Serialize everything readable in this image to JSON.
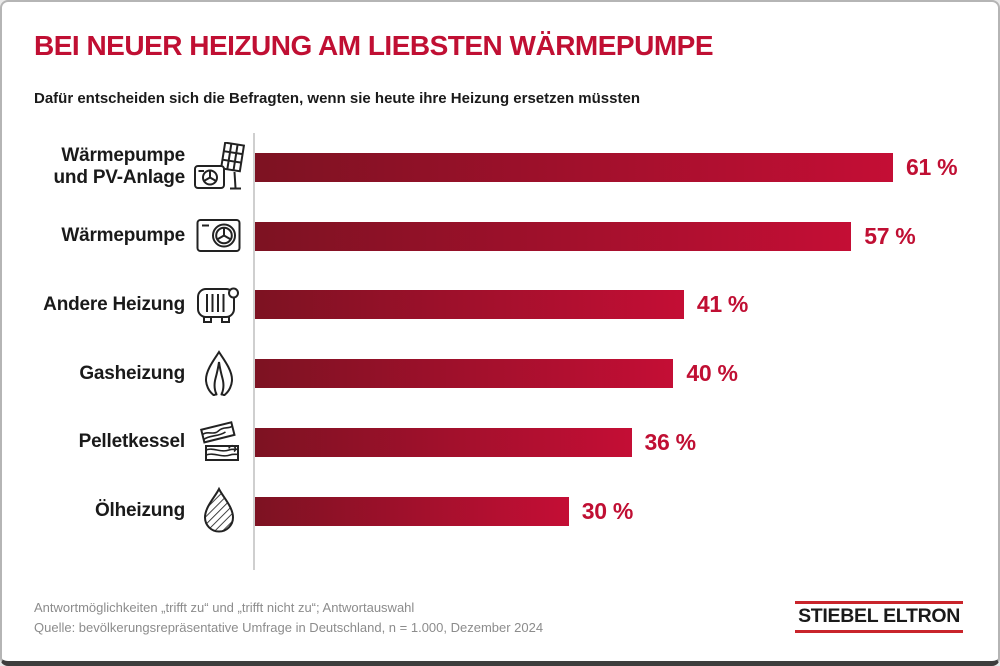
{
  "header": {
    "title": "BEI NEUER HEIZUNG AM LIEBSTEN WÄRMEPUMPE",
    "subtitle": "Dafür entscheiden sich die Befragten, wenn sie heute ihre Heizung ersetzen müssten"
  },
  "chart_data": {
    "type": "bar",
    "orientation": "horizontal",
    "title": "BEI NEUER HEIZUNG AM LIEBSTEN WÄRMEPUMPE",
    "subtitle": "Dafür entscheiden sich die Befragten, wenn sie heute ihre Heizung ersetzen müssten",
    "categories": [
      "Wärmepumpe\nund PV-Anlage",
      "Wärmepumpe",
      "Andere Heizung",
      "Gasheizung",
      "Pelletkessel",
      "Ölheizung"
    ],
    "values": [
      61,
      57,
      41,
      40,
      36,
      30
    ],
    "value_labels": [
      "61 %",
      "57 %",
      "41 %",
      "40 %",
      "36 %",
      "30 %"
    ],
    "value_unit": "%",
    "icons": [
      "heat-pump-pv-icon",
      "heat-pump-icon",
      "radiator-icon",
      "gas-flame-icon",
      "wood-pellets-icon",
      "oil-drop-icon"
    ],
    "grid": false,
    "legend": null,
    "xlabel": "",
    "ylabel": ""
  },
  "footer": {
    "note_line1": "Antwortmöglichkeiten „trifft zu“ und „trifft nicht zu“; Antwortauswahl",
    "note_line2": "Quelle: bevölkerungsrepräsentative Umfrage in Deutschland, n = 1.000, Dezember 2024",
    "logo_text": "STIEBEL ELTRON"
  },
  "colors": {
    "accent_red": "#c00f33",
    "bar_gradient_left": "#7d1222",
    "bar_gradient_right": "#c40e35",
    "axis_gray": "#cfcfcf",
    "note_gray": "#8c8c8c",
    "logo_red": "#c9242b",
    "text_black": "#1a1a1a"
  }
}
